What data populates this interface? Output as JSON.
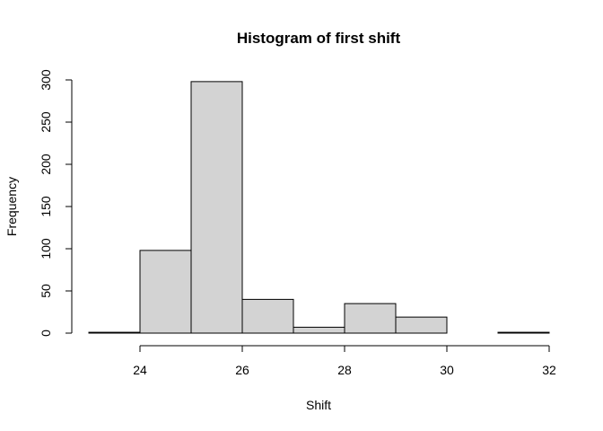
{
  "chart_data": {
    "type": "bar",
    "title": "Histogram of first shift",
    "xlabel": "Shift",
    "ylabel": "Frequency",
    "bins": [
      {
        "from": 23,
        "to": 24,
        "count": 1
      },
      {
        "from": 24,
        "to": 25,
        "count": 98
      },
      {
        "from": 25,
        "to": 26,
        "count": 298
      },
      {
        "from": 26,
        "to": 27,
        "count": 40
      },
      {
        "from": 27,
        "to": 28,
        "count": 7
      },
      {
        "from": 28,
        "to": 29,
        "count": 35
      },
      {
        "from": 29,
        "to": 30,
        "count": 19
      },
      {
        "from": 30,
        "to": 31,
        "count": 0
      },
      {
        "from": 31,
        "to": 32,
        "count": 1
      }
    ],
    "xlim": [
      23,
      32
    ],
    "ylim": [
      0,
      300
    ],
    "x_ticks": [
      "24",
      "26",
      "28",
      "30",
      "32"
    ],
    "y_ticks": [
      "0",
      "50",
      "100",
      "150",
      "200",
      "250",
      "300"
    ],
    "grid": false,
    "bar_fill": "#d3d3d3",
    "bar_stroke": "#000000"
  }
}
